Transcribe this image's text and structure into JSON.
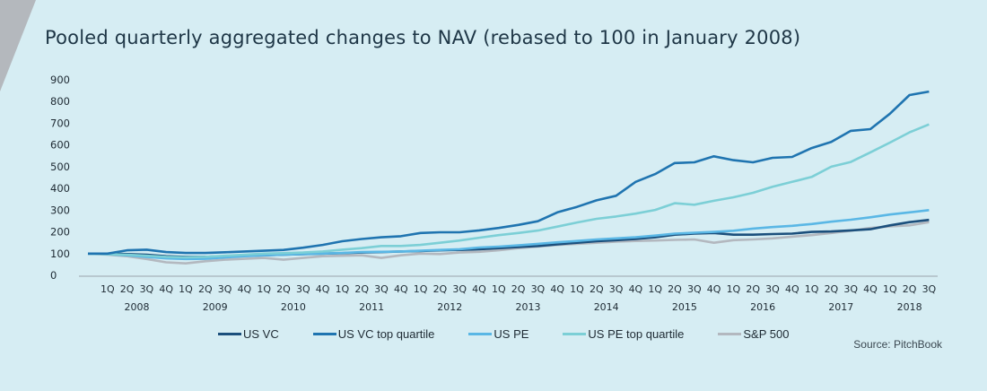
{
  "colors": {
    "background": "#d6edf3",
    "corner": "#b4b8bd",
    "title": "#1e3646",
    "axis": "#9aa4ab"
  },
  "chart_data": {
    "type": "line",
    "title": "Pooled quarterly aggregated changes to NAV (rebased to 100 in January 2008)",
    "ylim": [
      0,
      900
    ],
    "yticks": [
      "0",
      "100",
      "200",
      "300",
      "400",
      "500",
      "600",
      "700",
      "800",
      "900"
    ],
    "grid": false,
    "legend_position": "bottom",
    "x_quarter_labels": [
      "",
      "1Q",
      "2Q",
      "3Q",
      "4Q",
      "1Q",
      "2Q",
      "3Q",
      "4Q",
      "1Q",
      "2Q",
      "3Q",
      "4Q",
      "1Q",
      "2Q",
      "3Q",
      "4Q",
      "1Q",
      "2Q",
      "3Q",
      "4Q",
      "1Q",
      "2Q",
      "3Q",
      "4Q",
      "1Q",
      "2Q",
      "3Q",
      "4Q",
      "1Q",
      "2Q",
      "3Q",
      "4Q",
      "1Q",
      "2Q",
      "3Q",
      "4Q",
      "1Q",
      "2Q",
      "3Q",
      "4Q",
      "1Q",
      "2Q",
      "3Q"
    ],
    "x_year_labels": [
      "2008",
      "2009",
      "2010",
      "2011",
      "2012",
      "2013",
      "2014",
      "2015",
      "2016",
      "2017",
      "2018"
    ],
    "series": [
      {
        "name": "US VC",
        "color": "#1b4f7c",
        "values": [
          100,
          100,
          98,
          95,
          88,
          85,
          85,
          88,
          90,
          92,
          95,
          97,
          100,
          102,
          105,
          107,
          110,
          112,
          115,
          117,
          120,
          125,
          130,
          135,
          143,
          150,
          157,
          162,
          167,
          175,
          187,
          192,
          195,
          187,
          187,
          190,
          192,
          200,
          202,
          207,
          212,
          230,
          245,
          255
        ]
      },
      {
        "name": "US VC top quartile",
        "color": "#1f74b0",
        "values": [
          100,
          100,
          115,
          118,
          107,
          103,
          103,
          106,
          110,
          113,
          117,
          127,
          140,
          157,
          167,
          175,
          180,
          195,
          198,
          198,
          207,
          218,
          232,
          249,
          290,
          315,
          345,
          366,
          430,
          466,
          517,
          520,
          548,
          530,
          520,
          541,
          545,
          586,
          614,
          665,
          673,
          744,
          830,
          846
        ]
      },
      {
        "name": "US PE",
        "color": "#5ab7e5",
        "values": [
          100,
          97,
          92,
          85,
          78,
          75,
          76,
          82,
          88,
          92,
          95,
          98,
          100,
          103,
          107,
          108,
          110,
          113,
          117,
          120,
          128,
          132,
          138,
          145,
          152,
          158,
          165,
          170,
          175,
          183,
          192,
          196,
          200,
          205,
          215,
          222,
          228,
          236,
          247,
          256,
          267,
          280,
          290,
          300
        ]
      },
      {
        "name": "US PE top quartile",
        "color": "#7ccfd6",
        "values": [
          100,
          97,
          95,
          90,
          85,
          83,
          85,
          90,
          95,
          100,
          102,
          105,
          110,
          118,
          125,
          135,
          135,
          140,
          150,
          160,
          173,
          185,
          195,
          206,
          224,
          243,
          260,
          271,
          284,
          301,
          332,
          325,
          343,
          359,
          380,
          408,
          430,
          453,
          500,
          522,
          566,
          611,
          658,
          695
        ]
      },
      {
        "name": "S&P 500",
        "color": "#b3b8bf",
        "values": [
          100,
          95,
          88,
          75,
          60,
          55,
          65,
          72,
          76,
          80,
          72,
          80,
          88,
          90,
          92,
          80,
          92,
          100,
          98,
          105,
          108,
          115,
          125,
          132,
          140,
          145,
          150,
          155,
          158,
          160,
          163,
          165,
          150,
          162,
          165,
          170,
          178,
          185,
          195,
          205,
          218,
          225,
          230,
          245
        ]
      }
    ],
    "source": "Source: PitchBook"
  }
}
